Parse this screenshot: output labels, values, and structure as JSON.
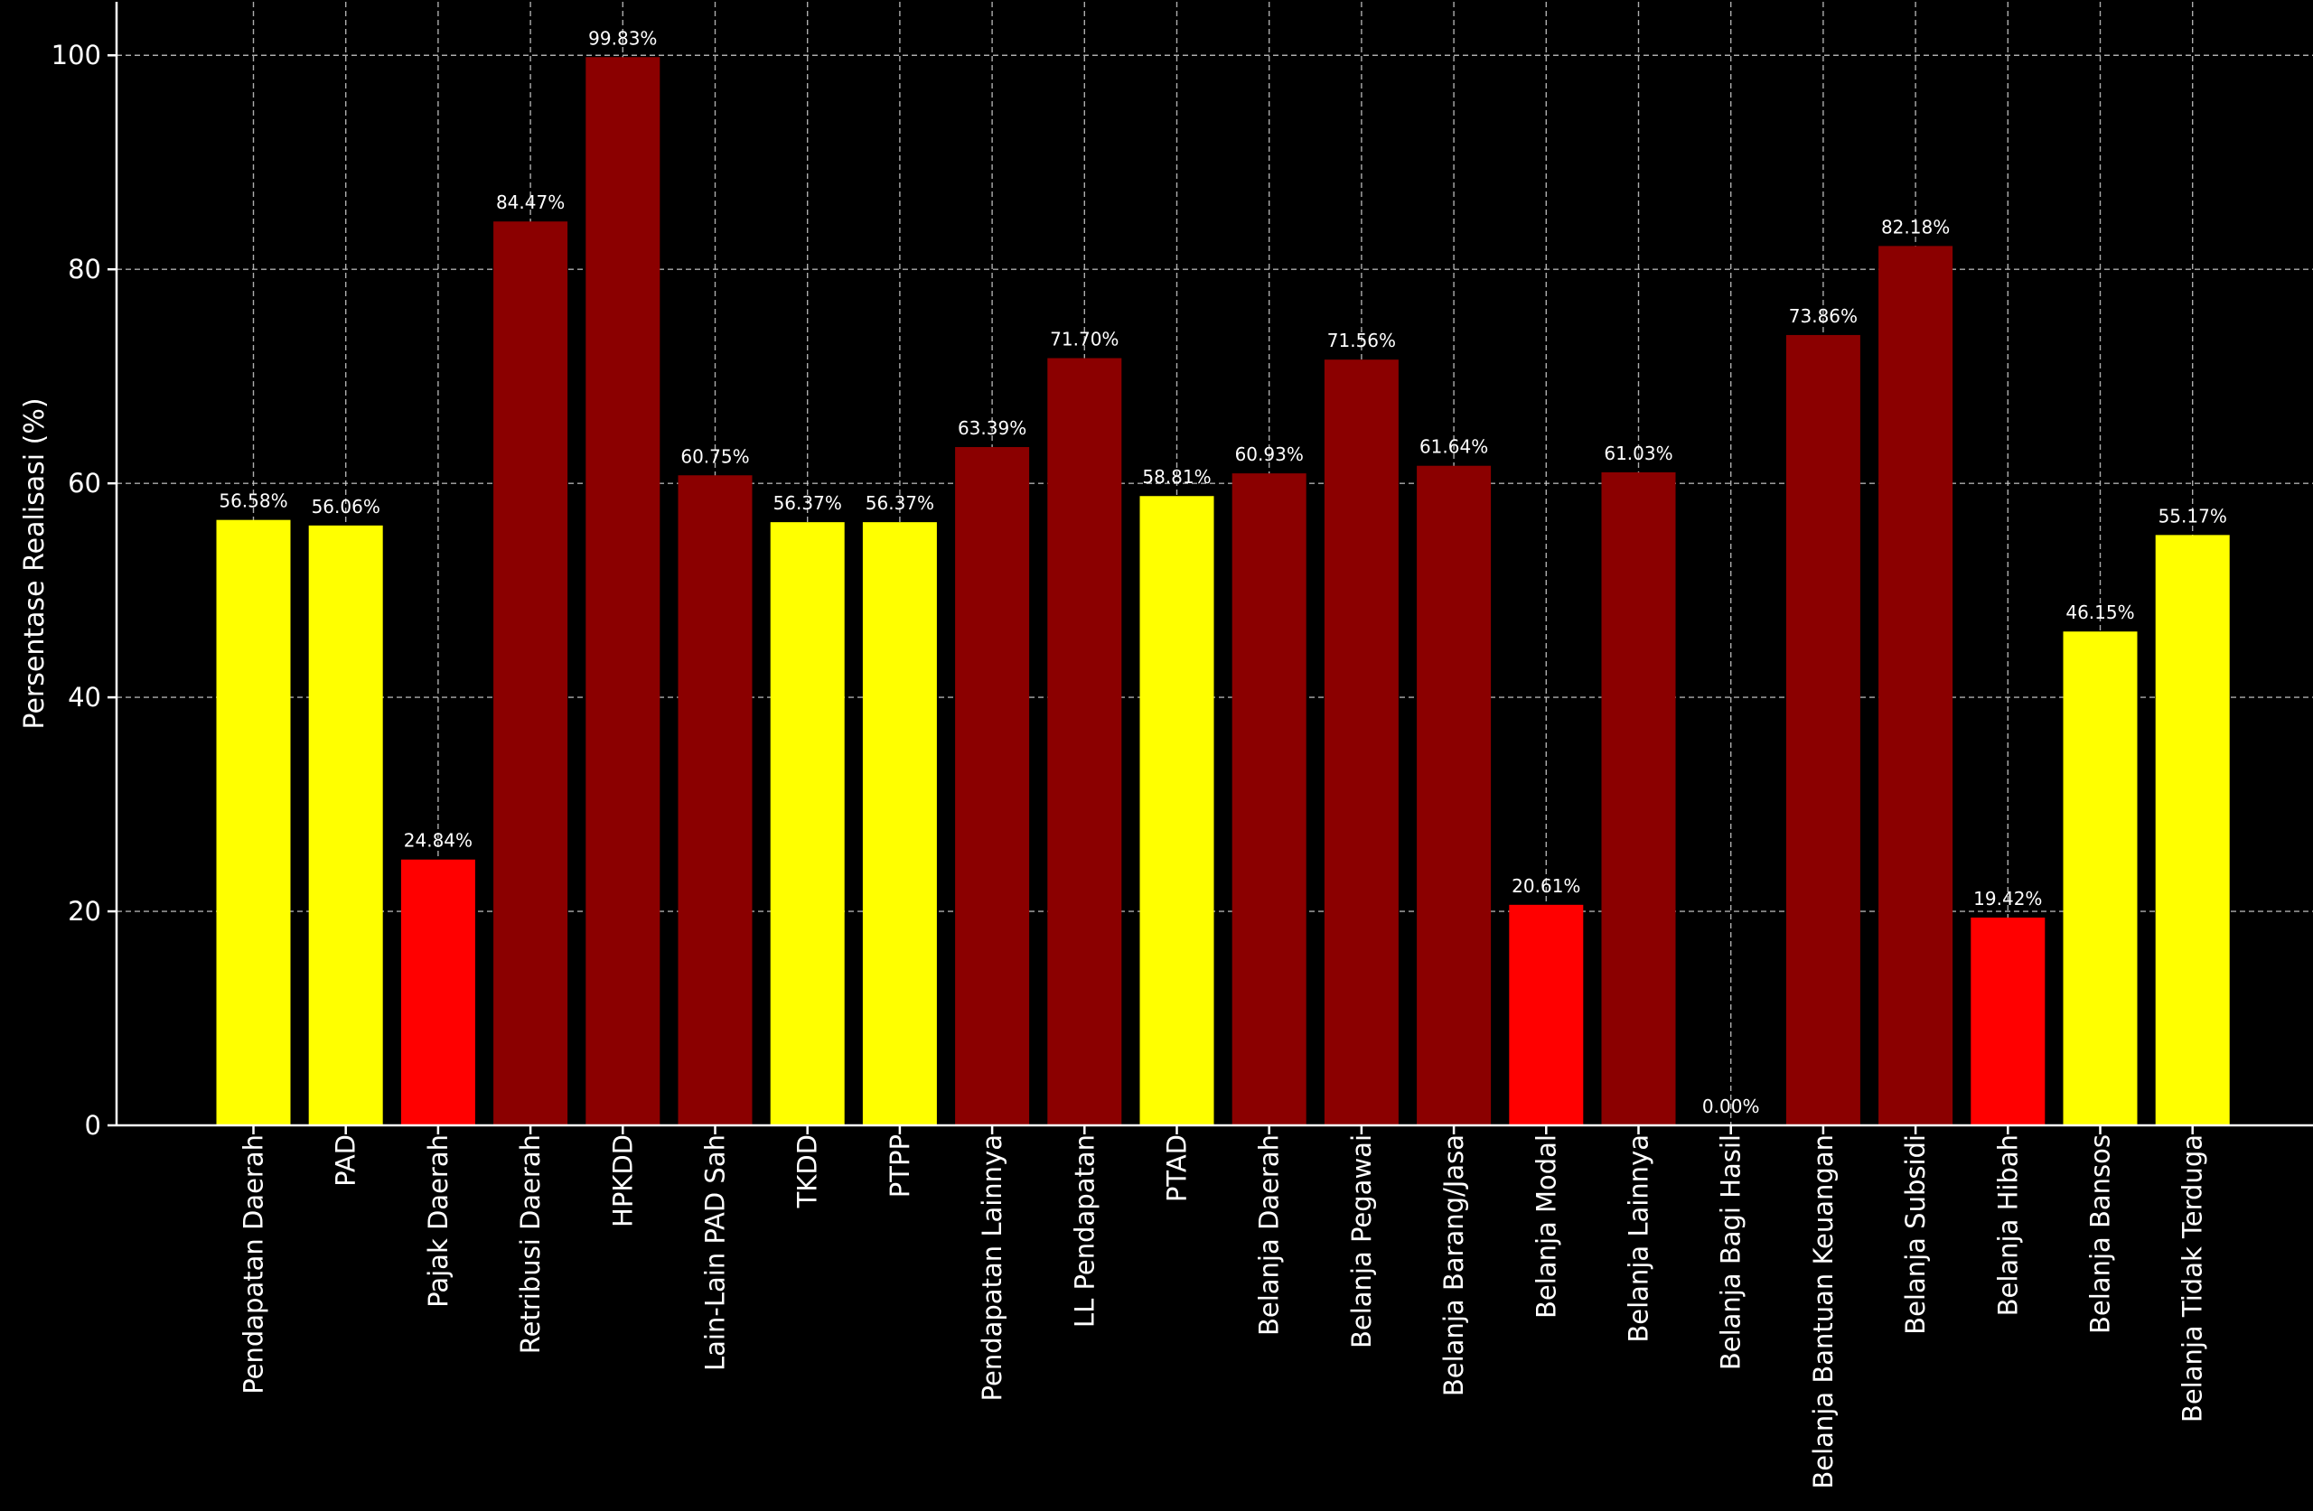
{
  "chart_data": {
    "type": "bar",
    "title": "",
    "xlabel": "",
    "ylabel": "Persentase Realisasi (%)",
    "ylim": [
      0,
      105
    ],
    "yticks": [
      0,
      20,
      40,
      60,
      80,
      100
    ],
    "grid": true,
    "categories": [
      "Pendapatan Daerah",
      "PAD",
      "Pajak Daerah",
      "Retribusi Daerah",
      "HPKDD",
      "Lain-Lain PAD Sah",
      "TKDD",
      "PTPP",
      "Pendapatan Lainnya",
      "LL Pendapatan",
      "PTAD",
      "Belanja Daerah",
      "Belanja Pegawai",
      "Belanja Barang/Jasa",
      "Belanja Modal",
      "Belanja Lainnya",
      "Belanja Bagi Hasil",
      "Belanja Bantuan Keuangan",
      "Belanja Subsidi",
      "Belanja Hibah",
      "Belanja Bansos",
      "Belanja Tidak Terduga"
    ],
    "values": [
      56.58,
      56.06,
      24.84,
      84.47,
      99.83,
      60.75,
      56.37,
      56.37,
      63.39,
      71.7,
      58.81,
      60.93,
      71.56,
      61.64,
      20.61,
      61.03,
      0.0,
      73.86,
      82.18,
      19.42,
      46.15,
      55.17
    ],
    "value_labels": [
      "56.58%",
      "56.06%",
      "24.84%",
      "84.47%",
      "99.83%",
      "60.75%",
      "56.37%",
      "56.37%",
      "63.39%",
      "71.70%",
      "58.81%",
      "60.93%",
      "71.56%",
      "61.64%",
      "20.61%",
      "61.03%",
      "0.00%",
      "73.86%",
      "82.18%",
      "19.42%",
      "46.15%",
      "55.17%"
    ],
    "colors": [
      "#ffff00",
      "#ffff00",
      "#ff0000",
      "#8b0000",
      "#8b0000",
      "#8b0000",
      "#ffff00",
      "#ffff00",
      "#8b0000",
      "#8b0000",
      "#ffff00",
      "#8b0000",
      "#8b0000",
      "#8b0000",
      "#ff0000",
      "#8b0000",
      "#ff0000",
      "#8b0000",
      "#8b0000",
      "#ff0000",
      "#ffff00",
      "#ffff00"
    ],
    "background": "#000000"
  }
}
